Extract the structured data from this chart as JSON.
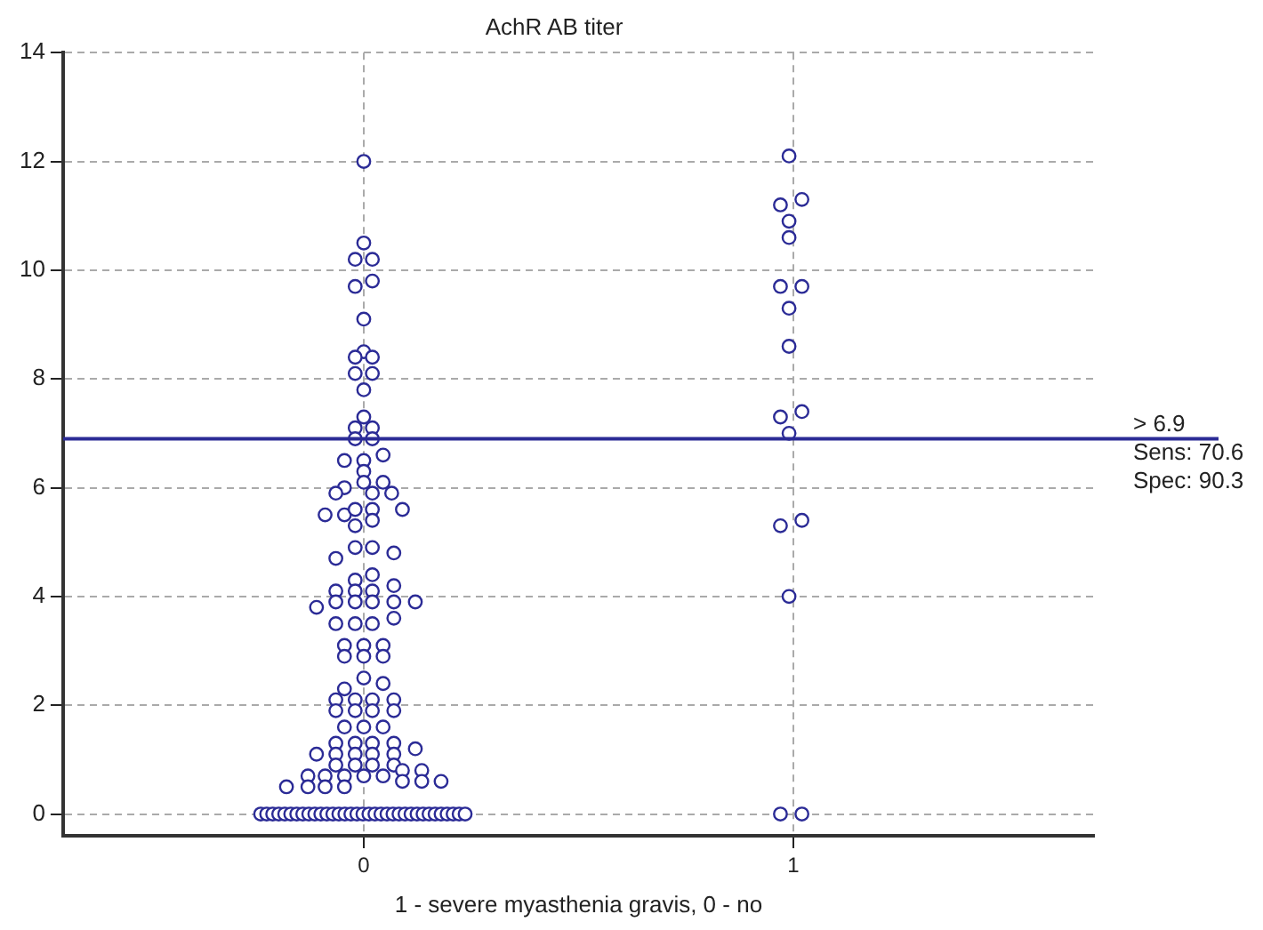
{
  "chart_data": {
    "type": "scatter",
    "title": "AchR AB titer",
    "xlabel": "1 - severe myasthenia gravis, 0 - no",
    "xlim": [
      -0.7,
      1.7
    ],
    "xticks": [
      0,
      1
    ],
    "ylim": [
      -0.4,
      14
    ],
    "yticks": [
      0,
      2,
      4,
      6,
      8,
      10,
      12,
      14
    ],
    "grid": true,
    "legend": false,
    "marker": "circle",
    "ref_lines": [
      {
        "axis": "y",
        "value": 6.9,
        "label": "> 6.9",
        "color": "#2b2b96"
      }
    ],
    "annotations": [
      "Sens: 70.6",
      "Spec: 90.3"
    ],
    "series": [
      {
        "color": "#2b2b96",
        "x": [
          0,
          0,
          -0.02,
          0.02,
          -0.02,
          0.02,
          0,
          0,
          -0.02,
          0.02,
          -0.02,
          0.02,
          0,
          0,
          -0.02,
          0.02,
          -0.02,
          0.02,
          0.045,
          -0.045,
          0,
          0,
          -0.045,
          0,
          0.045,
          0.065,
          -0.065,
          0.02,
          -0.09,
          -0.045,
          -0.02,
          0.02,
          0.09,
          0.02,
          -0.02,
          -0.065,
          -0.02,
          0.02,
          0.07,
          0.02,
          -0.02,
          -0.065,
          -0.02,
          0.02,
          0.07,
          -0.11,
          -0.065,
          -0.02,
          0.02,
          0.07,
          0.12,
          -0.065,
          -0.02,
          0.02,
          0.07,
          -0.045,
          0,
          0.045,
          -0.045,
          0,
          0.045,
          0,
          -0.045,
          0.045,
          -0.065,
          -0.02,
          0.02,
          0.07,
          -0.065,
          -0.02,
          0.02,
          0.07,
          -0.045,
          0,
          0.045,
          -0.065,
          -0.02,
          0.02,
          0.07,
          0.12,
          -0.11,
          -0.065,
          -0.02,
          0.02,
          0.07,
          -0.065,
          -0.02,
          0.02,
          0.07,
          0.09,
          0.135,
          -0.13,
          -0.09,
          -0.045,
          0,
          0.045,
          0.09,
          0.135,
          0.18,
          -0.18,
          -0.13,
          -0.09,
          -0.045,
          -0.24,
          -0.226,
          -0.212,
          -0.198,
          -0.184,
          -0.17,
          -0.156,
          -0.142,
          -0.128,
          -0.114,
          -0.1,
          -0.086,
          -0.072,
          -0.058,
          -0.044,
          -0.03,
          -0.016,
          -0.002,
          0.012,
          0.026,
          0.04,
          0.054,
          0.068,
          0.082,
          0.096,
          0.11,
          0.124,
          0.138,
          0.152,
          0.166,
          0.18,
          0.194,
          0.208,
          0.222,
          0.236,
          0.99,
          0.97,
          1.02,
          0.99,
          0.99,
          0.97,
          1.02,
          0.99,
          0.99,
          0.97,
          1.02,
          0.99,
          0.97,
          1.02,
          0.99,
          0.97,
          1.02
        ],
        "values": [
          12.0,
          10.5,
          10.2,
          10.2,
          9.7,
          9.8,
          9.1,
          8.5,
          8.4,
          8.4,
          8.1,
          8.1,
          7.8,
          7.3,
          7.1,
          7.1,
          6.9,
          6.9,
          6.6,
          6.5,
          6.5,
          6.3,
          6.0,
          6.1,
          6.1,
          5.9,
          5.9,
          5.9,
          5.5,
          5.5,
          5.6,
          5.6,
          5.6,
          5.4,
          5.3,
          4.7,
          4.9,
          4.9,
          4.8,
          4.4,
          4.3,
          4.1,
          4.1,
          4.1,
          4.2,
          3.8,
          3.9,
          3.9,
          3.9,
          3.9,
          3.9,
          3.5,
          3.5,
          3.5,
          3.6,
          3.1,
          3.1,
          3.1,
          2.9,
          2.9,
          2.9,
          2.5,
          2.3,
          2.4,
          2.1,
          2.1,
          2.1,
          2.1,
          1.9,
          1.9,
          1.9,
          1.9,
          1.6,
          1.6,
          1.6,
          1.3,
          1.3,
          1.3,
          1.3,
          1.2,
          1.1,
          1.1,
          1.1,
          1.1,
          1.1,
          0.9,
          0.9,
          0.9,
          0.9,
          0.8,
          0.8,
          0.7,
          0.7,
          0.7,
          0.7,
          0.7,
          0.6,
          0.6,
          0.6,
          0.5,
          0.5,
          0.5,
          0.5,
          0,
          0,
          0,
          0,
          0,
          0,
          0,
          0,
          0,
          0,
          0,
          0,
          0,
          0,
          0,
          0,
          0,
          0,
          0,
          0,
          0,
          0,
          0,
          0,
          0,
          0,
          0,
          0,
          0,
          0,
          0,
          0,
          0,
          0,
          0,
          12.1,
          11.2,
          11.3,
          10.9,
          10.6,
          9.7,
          9.7,
          9.3,
          8.6,
          7.3,
          7.4,
          7.0,
          5.3,
          5.4,
          4.0,
          0,
          0
        ]
      }
    ]
  }
}
